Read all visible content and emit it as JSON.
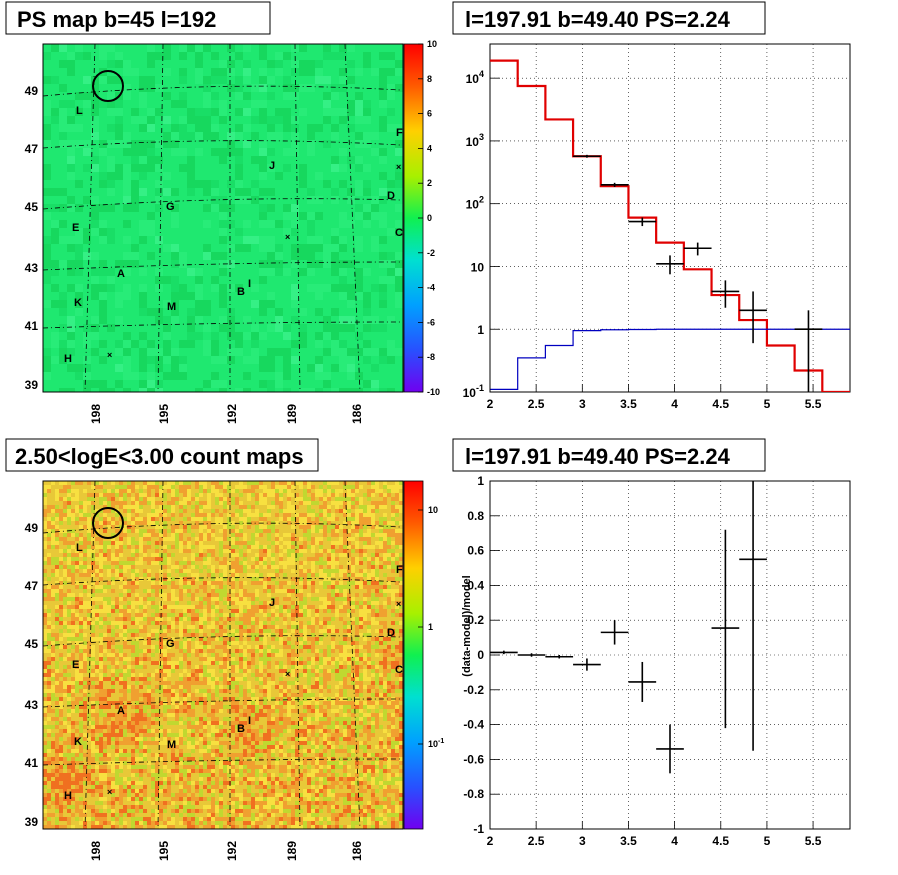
{
  "chart_data": [
    {
      "type": "heatmap",
      "title": "PS map b=45 l=192",
      "x_ticks": [
        "198",
        "195",
        "192",
        "189",
        "186"
      ],
      "y_ticks": [
        "49",
        "47",
        "45",
        "43",
        "41",
        "39"
      ],
      "colorbar_ticks": [
        "10",
        "8",
        "6",
        "4",
        "2",
        "0",
        "-2",
        "-4",
        "-6",
        "-8",
        "-10"
      ],
      "colorbar_range": [
        -10,
        10
      ],
      "sources": [
        {
          "name": "L"
        },
        {
          "name": "F"
        },
        {
          "name": "J"
        },
        {
          "name": "D"
        },
        {
          "name": "G"
        },
        {
          "name": "E"
        },
        {
          "name": "C"
        },
        {
          "name": "A"
        },
        {
          "name": "I"
        },
        {
          "name": "B"
        },
        {
          "name": "K"
        },
        {
          "name": "M"
        },
        {
          "name": "H"
        }
      ],
      "colors": {
        "map_base": "#1fe870",
        "map_dark": "#17d85e",
        "map_light": "#35f085"
      }
    },
    {
      "type": "line",
      "title": "l=197.91 b=49.40 PS=2.24",
      "x_ticks": [
        "2",
        "2.5",
        "3",
        "3.5",
        "4",
        "4.5",
        "5",
        "5.5"
      ],
      "y_ticks": [
        "10^4",
        "10^3",
        "10^2",
        "10",
        "1",
        "10^-1"
      ],
      "xlim": [
        2,
        5.9
      ],
      "ylim": [
        0.1,
        35000
      ],
      "log_y": true,
      "grid": true,
      "series": [
        {
          "color": "#e00000",
          "style": "step",
          "edges": [
            2.0,
            2.3,
            2.6,
            2.9,
            3.2,
            3.5,
            3.8,
            4.1,
            4.4,
            4.7,
            5.0,
            5.3,
            5.6,
            5.9
          ],
          "values": [
            19000,
            7500,
            2200,
            570,
            190,
            60,
            24,
            9,
            3.5,
            1.4,
            0.55,
            0.22,
            0.1
          ]
        },
        {
          "color": "#0000c0",
          "style": "step",
          "edges": [
            2.0,
            2.3,
            2.6,
            2.9,
            3.2,
            3.5,
            3.8,
            4.1,
            4.4,
            4.7,
            5.0,
            5.3,
            5.6,
            5.9
          ],
          "values": [
            0.11,
            0.35,
            0.55,
            0.95,
            0.98,
            0.99,
            1.0,
            1.0,
            1.0,
            1.0,
            1.0,
            1.0,
            1.0
          ]
        },
        {
          "color": "#000000",
          "style": "errorbar",
          "points": [
            {
              "x": 3.05,
              "y": 570,
              "xerr": 0.15,
              "ylo": 540,
              "yhi": 600
            },
            {
              "x": 3.35,
              "y": 200,
              "xerr": 0.15,
              "ylo": 185,
              "yhi": 215
            },
            {
              "x": 3.65,
              "y": 52,
              "xerr": 0.15,
              "ylo": 44,
              "yhi": 60
            },
            {
              "x": 3.95,
              "y": 11,
              "xerr": 0.15,
              "ylo": 7.5,
              "yhi": 15
            },
            {
              "x": 4.25,
              "y": 19.5,
              "xerr": 0.15,
              "ylo": 15,
              "yhi": 24
            },
            {
              "x": 4.55,
              "y": 4,
              "xerr": 0.15,
              "ylo": 2.2,
              "yhi": 6
            },
            {
              "x": 4.85,
              "y": 2,
              "xerr": 0.15,
              "ylo": 0.6,
              "yhi": 4
            },
            {
              "x": 5.45,
              "y": 1,
              "xerr": 0.15,
              "ylo": 0.1,
              "yhi": 2
            }
          ]
        }
      ]
    },
    {
      "type": "heatmap",
      "title": "2.50<logE<3.00 count maps",
      "x_ticks": [
        "198",
        "195",
        "192",
        "189",
        "186"
      ],
      "y_ticks": [
        "49",
        "47",
        "45",
        "43",
        "41",
        "39"
      ],
      "colorbar_ticks": [
        "10",
        "1",
        "10^-1"
      ],
      "colorbar_scale": "log",
      "sources": [
        {
          "name": "L"
        },
        {
          "name": "F"
        },
        {
          "name": "J"
        },
        {
          "name": "D"
        },
        {
          "name": "G"
        },
        {
          "name": "E"
        },
        {
          "name": "C"
        },
        {
          "name": "A"
        },
        {
          "name": "I"
        },
        {
          "name": "B"
        },
        {
          "name": "K"
        },
        {
          "name": "M"
        },
        {
          "name": "H"
        }
      ],
      "colors": {
        "map_base": "#e8c838",
        "map_red": "#f07020",
        "map_yellow": "#f8e040",
        "map_green": "#c0d830"
      }
    },
    {
      "type": "scatter",
      "title": "l=197.91 b=49.40 PS=2.24",
      "ylabel": "(data-model)/model",
      "x_ticks": [
        "2",
        "2.5",
        "3",
        "3.5",
        "4",
        "4.5",
        "5",
        "5.5"
      ],
      "y_ticks": [
        "1",
        "0.8",
        "0.6",
        "0.4",
        "0.2",
        "0",
        "-0.2",
        "-0.4",
        "-0.6",
        "-0.8",
        "-1"
      ],
      "xlim": [
        2,
        5.9
      ],
      "ylim": [
        -1,
        1
      ],
      "grid": true,
      "points": [
        {
          "x": 2.15,
          "y": 0.015,
          "xerr": 0.15,
          "ylo": 0.005,
          "yhi": 0.025
        },
        {
          "x": 2.45,
          "y": 0.0,
          "xerr": 0.15,
          "ylo": -0.01,
          "yhi": 0.01
        },
        {
          "x": 2.75,
          "y": -0.01,
          "xerr": 0.15,
          "ylo": -0.02,
          "yhi": 0.0
        },
        {
          "x": 3.05,
          "y": -0.055,
          "xerr": 0.15,
          "ylo": -0.09,
          "yhi": -0.02
        },
        {
          "x": 3.35,
          "y": 0.13,
          "xerr": 0.15,
          "ylo": 0.06,
          "yhi": 0.2
        },
        {
          "x": 3.65,
          "y": -0.155,
          "xerr": 0.15,
          "ylo": -0.27,
          "yhi": -0.04
        },
        {
          "x": 3.95,
          "y": -0.54,
          "xerr": 0.15,
          "ylo": -0.68,
          "yhi": -0.4
        },
        {
          "x": 4.55,
          "y": 0.155,
          "xerr": 0.15,
          "ylo": -0.42,
          "yhi": 0.72
        },
        {
          "x": 4.85,
          "y": 0.55,
          "xerr": 0.15,
          "ylo": -0.55,
          "yhi": 1.0
        }
      ]
    }
  ]
}
